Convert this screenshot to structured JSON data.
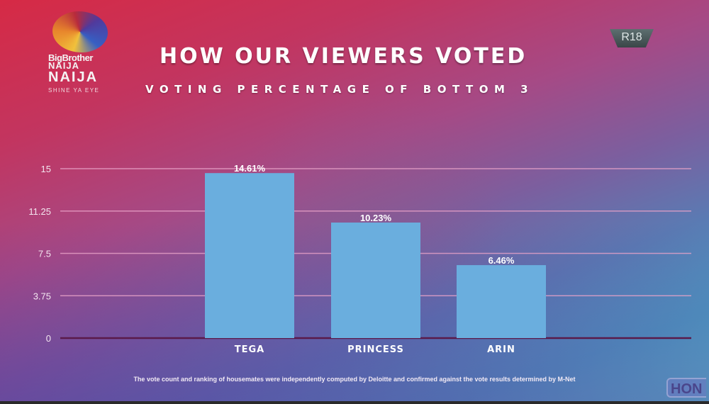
{
  "logo": {
    "line1": "BigBrother",
    "line2": "NAIJA",
    "line3": "NAIJA",
    "tagline": "SHINE YA EYE"
  },
  "rating_badge": "R18",
  "watermark": "HON",
  "footnote": "The vote count and ranking of housemates were independently computed by Deloitte and confirmed against the vote results determined by M-Net",
  "colors": {
    "bar": "#6aaede",
    "gridline": "#e8a3c8",
    "baseline": "#5a1a4a"
  },
  "chart_data": {
    "type": "bar",
    "title": "HOW OUR VIEWERS VOTED",
    "subtitle": "VOTING PERCENTAGE OF BOTTOM 3",
    "xlabel": "",
    "ylabel": "",
    "categories": [
      "TEGA",
      "PRINCESS",
      "ARIN"
    ],
    "values": [
      14.61,
      10.23,
      6.46
    ],
    "data_labels": [
      "14.61%",
      "10.23%",
      "6.46%"
    ],
    "ylim": [
      0,
      15
    ],
    "yticks": [
      0,
      3.75,
      7.5,
      11.25,
      15
    ],
    "ytick_labels": [
      "0",
      "3.75",
      "7.5",
      "11.25",
      "15"
    ],
    "grid": true,
    "legend": "none"
  }
}
